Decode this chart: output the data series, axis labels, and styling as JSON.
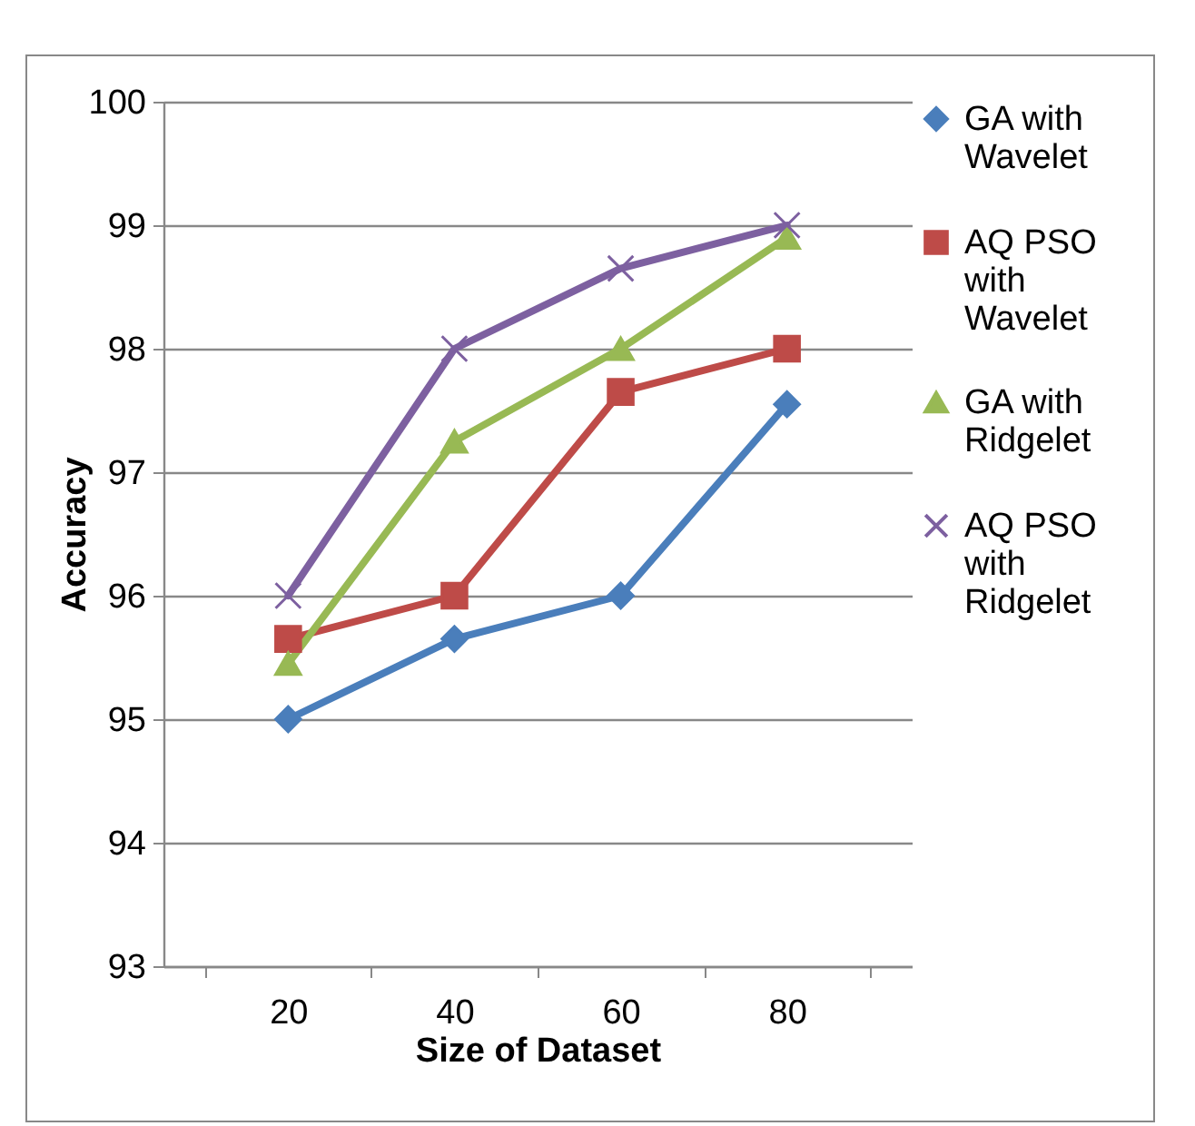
{
  "chart_data": {
    "type": "line",
    "xlabel": "Size of Dataset",
    "ylabel": "Accuracy",
    "categories": [
      "20",
      "40",
      "60",
      "80"
    ],
    "ylim": [
      93,
      100
    ],
    "yticks": [
      93,
      94,
      95,
      96,
      97,
      98,
      99,
      100
    ],
    "grid": "y",
    "legend": "right",
    "line_style": "solid",
    "series": [
      {
        "name": "GA with Wavelet",
        "color": "#4a7ebb",
        "marker": "diamond",
        "values": [
          95,
          95.65,
          96,
          97.55
        ]
      },
      {
        "name": "AQ PSO with Wavelet",
        "color": "#be4b48",
        "marker": "square",
        "values": [
          95.65,
          96,
          97.65,
          98
        ]
      },
      {
        "name": "GA with Ridgelet",
        "color": "#98b954",
        "marker": "triangle",
        "values": [
          95.45,
          97.25,
          98,
          98.9
        ]
      },
      {
        "name": "AQ PSO with Ridgelet",
        "color": "#7d60a0",
        "marker": "cross",
        "values": [
          96,
          98,
          98.65,
          99
        ]
      }
    ]
  }
}
